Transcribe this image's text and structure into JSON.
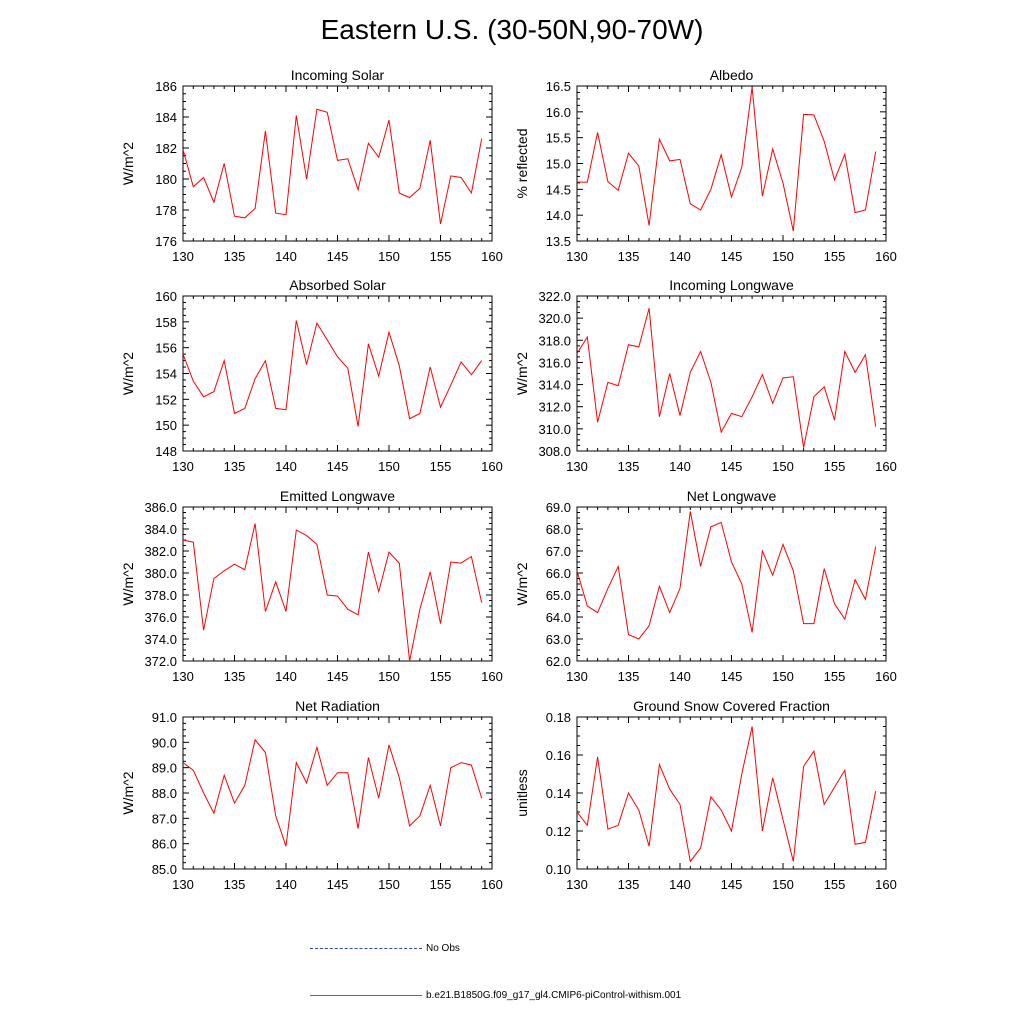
{
  "title": "Eastern U.S. (30-50N,90-70W)",
  "colors": {
    "series": "#ff0000",
    "obs": "#3344bb",
    "axis": "#000000"
  },
  "legend": {
    "obs_label": "No Obs",
    "model_label": "b.e21.B1850G.f09_g17_gl4.CMIP6-piControl-withism.001"
  },
  "chart_data": [
    {
      "type": "line",
      "title": "Incoming Solar",
      "xlabel": "",
      "ylabel": "W/m^2",
      "xlim": [
        130,
        160
      ],
      "ylim": [
        176,
        186
      ],
      "xticks": [
        130,
        135,
        140,
        145,
        150,
        155,
        160
      ],
      "yticks": [
        176,
        178,
        180,
        182,
        184,
        186
      ],
      "ytick_labels": [
        "176",
        "178",
        "180",
        "182",
        "184",
        "186"
      ],
      "x": [
        130,
        131,
        132,
        133,
        134,
        135,
        136,
        137,
        138,
        139,
        140,
        141,
        142,
        143,
        144,
        145,
        146,
        147,
        148,
        149,
        150,
        151,
        152,
        153,
        154,
        155,
        156,
        157,
        158,
        159
      ],
      "values": [
        181.9,
        179.5,
        180.1,
        178.5,
        181.0,
        177.6,
        177.5,
        178.1,
        183.1,
        177.8,
        177.7,
        184.1,
        180.0,
        184.5,
        184.3,
        181.2,
        181.3,
        179.3,
        182.3,
        181.4,
        183.8,
        179.1,
        178.8,
        179.4,
        182.5,
        177.1,
        180.2,
        180.1,
        179.1,
        182.6
      ]
    },
    {
      "type": "line",
      "title": "Albedo",
      "xlabel": "",
      "ylabel": "% reflected",
      "xlim": [
        130,
        160
      ],
      "ylim": [
        13.5,
        16.5
      ],
      "xticks": [
        130,
        135,
        140,
        145,
        150,
        155,
        160
      ],
      "yticks": [
        13.5,
        14.0,
        14.5,
        15.0,
        15.5,
        16.0,
        16.5
      ],
      "ytick_labels": [
        "13.5",
        "14.0",
        "14.5",
        "15.0",
        "15.5",
        "16.0",
        "16.5"
      ],
      "x": [
        130,
        131,
        132,
        133,
        134,
        135,
        136,
        137,
        138,
        139,
        140,
        141,
        142,
        143,
        144,
        145,
        146,
        147,
        148,
        149,
        150,
        151,
        152,
        153,
        154,
        155,
        156,
        157,
        158,
        159
      ],
      "values": [
        14.64,
        14.64,
        15.6,
        14.65,
        14.48,
        15.2,
        14.95,
        13.8,
        15.47,
        15.05,
        15.08,
        14.22,
        14.1,
        14.5,
        15.17,
        14.35,
        14.93,
        16.48,
        14.37,
        15.28,
        14.62,
        13.69,
        15.95,
        15.94,
        15.43,
        14.68,
        15.18,
        14.05,
        14.1,
        15.23
      ]
    },
    {
      "type": "line",
      "title": "Absorbed Solar",
      "xlabel": "",
      "ylabel": "W/m^2",
      "xlim": [
        130,
        160
      ],
      "ylim": [
        148,
        160
      ],
      "xticks": [
        130,
        135,
        140,
        145,
        150,
        155,
        160
      ],
      "yticks": [
        148,
        150,
        152,
        154,
        156,
        158,
        160
      ],
      "ytick_labels": [
        "148",
        "150",
        "152",
        "154",
        "156",
        "158",
        "160"
      ],
      "x": [
        130,
        131,
        132,
        133,
        134,
        135,
        136,
        137,
        138,
        139,
        140,
        141,
        142,
        143,
        144,
        145,
        146,
        147,
        148,
        149,
        150,
        151,
        152,
        153,
        154,
        155,
        156,
        157,
        158,
        159
      ],
      "values": [
        155.5,
        153.4,
        152.2,
        152.6,
        155.0,
        150.9,
        151.3,
        153.6,
        155.0,
        151.3,
        151.2,
        158.1,
        154.7,
        157.9,
        156.6,
        155.3,
        154.4,
        149.9,
        156.3,
        153.8,
        157.2,
        154.6,
        150.5,
        150.9,
        154.5,
        151.4,
        153.1,
        154.9,
        153.9,
        155.0
      ]
    },
    {
      "type": "line",
      "title": "Incoming Longwave",
      "xlabel": "",
      "ylabel": "W/m^2",
      "xlim": [
        130,
        160
      ],
      "ylim": [
        308,
        322
      ],
      "xticks": [
        130,
        135,
        140,
        145,
        150,
        155,
        160
      ],
      "yticks": [
        308,
        310,
        312,
        314,
        316,
        318,
        320,
        322
      ],
      "ytick_labels": [
        "308.0",
        "310.0",
        "312.0",
        "314.0",
        "316.0",
        "318.0",
        "320.0",
        "322.0"
      ],
      "x": [
        130,
        131,
        132,
        133,
        134,
        135,
        136,
        137,
        138,
        139,
        140,
        141,
        142,
        143,
        144,
        145,
        146,
        147,
        148,
        149,
        150,
        151,
        152,
        153,
        154,
        155,
        156,
        157,
        158,
        159
      ],
      "values": [
        316.8,
        318.3,
        310.6,
        314.2,
        313.9,
        317.6,
        317.4,
        320.9,
        311.1,
        315.0,
        311.2,
        315.1,
        317.0,
        314.2,
        309.7,
        311.4,
        311.1,
        312.9,
        314.9,
        312.3,
        314.6,
        314.7,
        308.3,
        312.9,
        313.8,
        310.8,
        317.0,
        315.1,
        316.7,
        310.2
      ]
    },
    {
      "type": "line",
      "title": "Emitted Longwave",
      "xlabel": "",
      "ylabel": "W/m^2",
      "xlim": [
        130,
        160
      ],
      "ylim": [
        372,
        386
      ],
      "xticks": [
        130,
        135,
        140,
        145,
        150,
        155,
        160
      ],
      "yticks": [
        372,
        374,
        376,
        378,
        380,
        382,
        384,
        386
      ],
      "ytick_labels": [
        "372.0",
        "374.0",
        "376.0",
        "378.0",
        "380.0",
        "382.0",
        "384.0",
        "386.0"
      ],
      "x": [
        130,
        131,
        132,
        133,
        134,
        135,
        136,
        137,
        138,
        139,
        140,
        141,
        142,
        143,
        144,
        145,
        146,
        147,
        148,
        149,
        150,
        151,
        152,
        153,
        154,
        155,
        156,
        157,
        158,
        159
      ],
      "values": [
        383.0,
        382.8,
        374.8,
        379.5,
        380.2,
        380.8,
        380.3,
        384.5,
        376.5,
        379.2,
        376.5,
        383.9,
        383.4,
        382.6,
        378.0,
        377.9,
        376.7,
        376.2,
        381.9,
        378.3,
        381.9,
        380.9,
        372.0,
        376.7,
        380.1,
        375.4,
        381.0,
        380.9,
        381.5,
        377.3
      ]
    },
    {
      "type": "line",
      "title": "Net Longwave",
      "xlabel": "",
      "ylabel": "W/m^2",
      "xlim": [
        130,
        160
      ],
      "ylim": [
        62,
        69
      ],
      "xticks": [
        130,
        135,
        140,
        145,
        150,
        155,
        160
      ],
      "yticks": [
        62,
        63,
        64,
        65,
        66,
        67,
        68,
        69
      ],
      "ytick_labels": [
        "62.0",
        "63.0",
        "64.0",
        "65.0",
        "66.0",
        "67.0",
        "68.0",
        "69.0"
      ],
      "x": [
        130,
        131,
        132,
        133,
        134,
        135,
        136,
        137,
        138,
        139,
        140,
        141,
        142,
        143,
        144,
        145,
        146,
        147,
        148,
        149,
        150,
        151,
        152,
        153,
        154,
        155,
        156,
        157,
        158,
        159
      ],
      "values": [
        66.1,
        64.5,
        64.2,
        65.3,
        66.3,
        63.2,
        63.0,
        63.6,
        65.4,
        64.2,
        65.3,
        68.8,
        66.3,
        68.1,
        68.3,
        66.5,
        65.5,
        63.3,
        67.0,
        65.9,
        67.3,
        66.1,
        63.7,
        63.7,
        66.2,
        64.6,
        63.9,
        65.7,
        64.8,
        67.2
      ]
    },
    {
      "type": "line",
      "title": "Net Radiation",
      "xlabel": "",
      "ylabel": "W/m^2",
      "xlim": [
        130,
        160
      ],
      "ylim": [
        85,
        91
      ],
      "xticks": [
        130,
        135,
        140,
        145,
        150,
        155,
        160
      ],
      "yticks": [
        85,
        86,
        87,
        88,
        89,
        90,
        91
      ],
      "ytick_labels": [
        "85.0",
        "86.0",
        "87.0",
        "88.0",
        "89.0",
        "90.0",
        "91.0"
      ],
      "x": [
        130,
        131,
        132,
        133,
        134,
        135,
        136,
        137,
        138,
        139,
        140,
        141,
        142,
        143,
        144,
        145,
        146,
        147,
        148,
        149,
        150,
        151,
        152,
        153,
        154,
        155,
        156,
        157,
        158,
        159
      ],
      "values": [
        89.2,
        88.9,
        88.0,
        87.2,
        88.7,
        87.6,
        88.3,
        90.1,
        89.6,
        87.1,
        85.9,
        89.2,
        88.4,
        89.8,
        88.3,
        88.8,
        88.8,
        86.6,
        89.4,
        87.8,
        89.9,
        88.6,
        86.7,
        87.1,
        88.3,
        86.7,
        89.0,
        89.2,
        89.1,
        87.8
      ]
    },
    {
      "type": "line",
      "title": "Ground Snow Covered Fraction",
      "xlabel": "",
      "ylabel": "unitless",
      "xlim": [
        130,
        160
      ],
      "ylim": [
        0.1,
        0.18
      ],
      "xticks": [
        130,
        135,
        140,
        145,
        150,
        155,
        160
      ],
      "yticks": [
        0.1,
        0.12,
        0.14,
        0.16,
        0.18
      ],
      "ytick_labels": [
        "0.10",
        "0.12",
        "0.14",
        "0.16",
        "0.18"
      ],
      "x": [
        130,
        131,
        132,
        133,
        134,
        135,
        136,
        137,
        138,
        139,
        140,
        141,
        142,
        143,
        144,
        145,
        146,
        147,
        148,
        149,
        150,
        151,
        152,
        153,
        154,
        155,
        156,
        157,
        158,
        159
      ],
      "values": [
        0.13,
        0.123,
        0.159,
        0.121,
        0.123,
        0.14,
        0.131,
        0.112,
        0.155,
        0.142,
        0.134,
        0.104,
        0.111,
        0.138,
        0.131,
        0.12,
        0.15,
        0.175,
        0.12,
        0.148,
        0.126,
        0.104,
        0.154,
        0.162,
        0.134,
        0.143,
        0.152,
        0.113,
        0.114,
        0.141
      ]
    }
  ]
}
